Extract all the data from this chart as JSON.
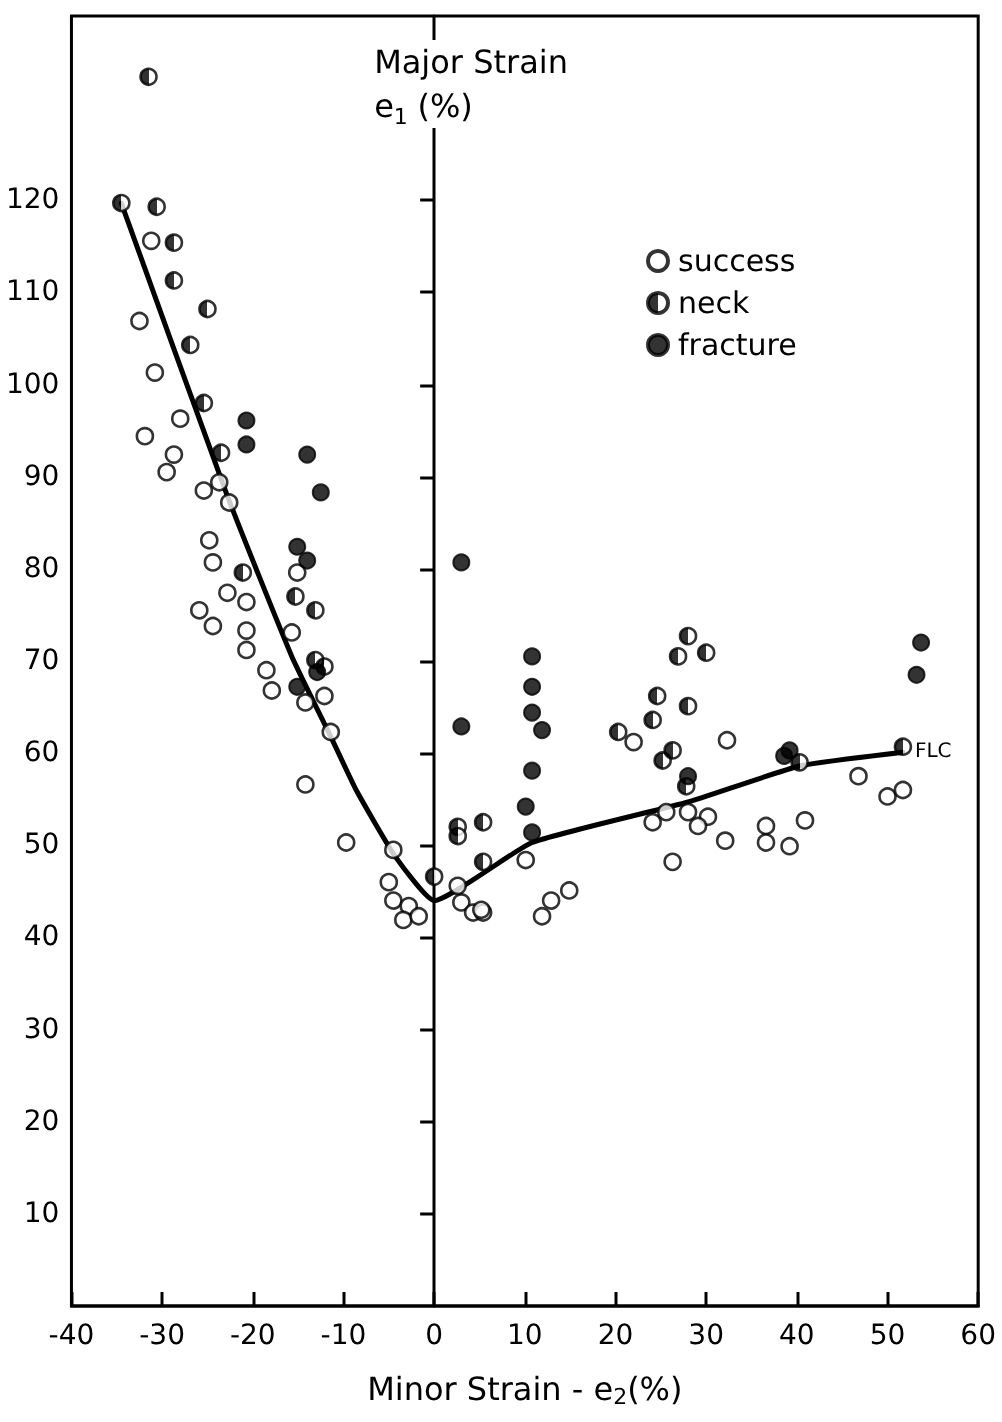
{
  "chart_data": {
    "type": "scatter",
    "xlabel": "Minor Strain - e$_{2}$(%)",
    "ylabel": "Major Strain e$_{1}$ (%)",
    "xlim": [
      -40,
      60
    ],
    "xticks": [
      -40,
      -30,
      -20,
      -10,
      0,
      10,
      20,
      30,
      40,
      50,
      60
    ],
    "ylim": [
      0,
      140
    ],
    "yticks": [
      10,
      20,
      30,
      40,
      50,
      60,
      70,
      80,
      90,
      100,
      110,
      120
    ],
    "legend": "top right",
    "marker": "circle",
    "series": [
      {
        "name": "success",
        "color": "#000000",
        "x": [
          -31.2,
          -32.5,
          -30.8,
          -28,
          -31.9,
          -28.7,
          -29.5,
          -25.4,
          -23.7,
          -22.6,
          -15.1,
          -24.8,
          -24.4,
          -22.8,
          -20.7,
          -24.4,
          -20.7,
          -20.7,
          -18.5,
          -17.9,
          -25.9,
          -15.7,
          -14.2,
          -12.1,
          -11.4,
          -14.2,
          -9.7,
          -4.5,
          -5,
          -4.5,
          -2.8,
          -3.4,
          -1.7,
          3,
          4.3,
          5.4,
          2.6,
          5.2,
          10.1,
          12.9,
          14.9,
          11.9,
          22,
          32.3,
          24.1,
          25.6,
          28,
          30.2,
          29.1,
          32.1,
          26.3,
          36.6,
          36.6,
          39.2,
          40.9,
          46.8,
          50,
          51.7
        ],
        "values": [
          115.6,
          106.9,
          101.3,
          96.3,
          94.4,
          92.4,
          90.5,
          88.5,
          89.4,
          87.2,
          79.6,
          83.1,
          80.7,
          77.4,
          76.4,
          73.8,
          73.3,
          71.2,
          69,
          66.8,
          75.5,
          73.1,
          65.5,
          66.2,
          62.3,
          56.6,
          50.3,
          49.5,
          46,
          44,
          43.4,
          41.9,
          42.3,
          43.8,
          42.7,
          42.7,
          45.6,
          43,
          48.4,
          44,
          45.1,
          42.3,
          61.2,
          61.4,
          52.5,
          53.6,
          53.6,
          53.1,
          52.1,
          50.5,
          48.2,
          52.1,
          50.3,
          49.9,
          52.7,
          57.5,
          55.3,
          56
        ]
      },
      {
        "name": "neck",
        "color": "#000000",
        "x": [
          -31.5,
          -34.5,
          -30.6,
          -28.7,
          -28.7,
          -25,
          -26.9,
          -25.4,
          -23.5,
          -21.1,
          -15.3,
          -13.1,
          -13.1,
          -12.1,
          2.6,
          2.6,
          5.4,
          0,
          5.4,
          20.3,
          24.1,
          24.6,
          28,
          26.9,
          30,
          28,
          25.2,
          26.3,
          27.8,
          40.3,
          51.7
        ],
        "values": [
          133.4,
          119.7,
          119.3,
          115.4,
          111.3,
          108.2,
          104.3,
          98,
          92.6,
          79.6,
          77,
          75.5,
          70.1,
          69.4,
          52,
          51,
          52.5,
          46.6,
          48.2,
          62.3,
          63.6,
          66.2,
          72.7,
          70.5,
          70.9,
          65.1,
          59.2,
          60.3,
          56.4,
          59,
          60.7
        ]
      },
      {
        "name": "fracture",
        "color": "#000000",
        "x": [
          -20.7,
          -20.7,
          -14,
          -12.5,
          -15.1,
          -14,
          -15.1,
          -12.9,
          3,
          3,
          10.8,
          10.8,
          10.8,
          11.9,
          10.8,
          10.1,
          10.8,
          28,
          38.6,
          39.2,
          53.7,
          53.2
        ],
        "values": [
          96.1,
          93.5,
          92.4,
          88.3,
          82.4,
          80.9,
          67.2,
          68.8,
          80.7,
          62.9,
          70.5,
          67.2,
          64.4,
          62.5,
          58.1,
          54.2,
          51.4,
          57.5,
          59.7,
          60.3,
          72,
          68.5
        ]
      },
      {
        "name": "FLC",
        "type": "line",
        "color": "#000000",
        "marker": "none",
        "line_style": "solid",
        "x": [
          -34.5,
          -22.8,
          -15.7,
          -11.4,
          -8.6,
          -4.3,
          0,
          10.8,
          28,
          40.3,
          51.7
        ],
        "values": [
          119.7,
          87.9,
          70.5,
          61.8,
          56,
          48.8,
          44,
          50.3,
          54.7,
          58.6,
          60.1
        ]
      }
    ]
  }
}
